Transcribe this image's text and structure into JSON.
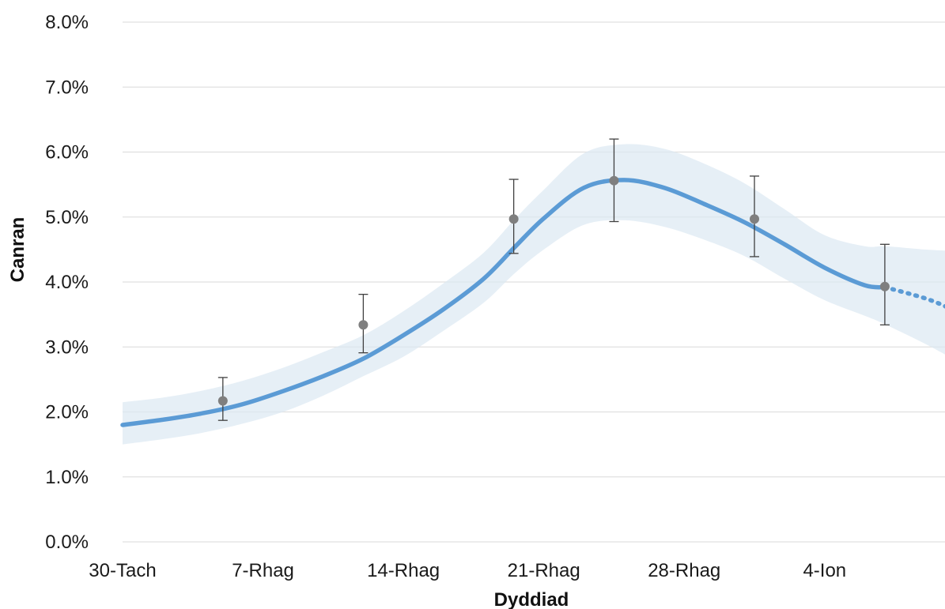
{
  "chart_data": {
    "type": "line",
    "title": "",
    "xlabel": "Dyddiad",
    "ylabel": "Canran",
    "x_tick_labels": [
      "30-Tach",
      "7-Rhag",
      "14-Rhag",
      "21-Rhag",
      "28-Rhag",
      "4-Ion"
    ],
    "x_tick_positions": [
      0,
      7,
      14,
      21,
      28,
      35
    ],
    "y_tick_labels": [
      "0.0%",
      "1.0%",
      "2.0%",
      "3.0%",
      "4.0%",
      "5.0%",
      "6.0%",
      "7.0%",
      "8.0%"
    ],
    "xlim": [
      0,
      41
    ],
    "ylim": [
      0,
      8
    ],
    "grid": "horizontal",
    "colors": {
      "line": "#5b9bd5",
      "band": "#dce8f2",
      "points": "#7f7f7f",
      "error_bars": "#404040",
      "grid": "#e0e0e0"
    },
    "modelled_series": {
      "x": [
        0,
        2,
        4,
        6,
        8,
        10,
        12,
        14,
        16,
        18,
        19.5,
        21,
        23,
        25,
        27,
        29,
        31,
        33,
        35,
        37,
        38
      ],
      "y": [
        1.8,
        1.88,
        1.98,
        2.12,
        2.32,
        2.55,
        2.82,
        3.18,
        3.58,
        4.05,
        4.52,
        4.98,
        5.45,
        5.57,
        5.45,
        5.2,
        4.92,
        4.58,
        4.22,
        3.95,
        3.92
      ],
      "lower": [
        1.5,
        1.58,
        1.68,
        1.82,
        2.0,
        2.25,
        2.55,
        2.85,
        3.25,
        3.68,
        4.12,
        4.5,
        4.88,
        4.95,
        4.85,
        4.65,
        4.4,
        4.05,
        3.72,
        3.48,
        3.35
      ],
      "upper": [
        2.15,
        2.22,
        2.33,
        2.48,
        2.68,
        2.92,
        3.18,
        3.55,
        3.98,
        4.45,
        4.95,
        5.42,
        5.98,
        6.12,
        6.05,
        5.82,
        5.52,
        5.12,
        4.72,
        4.55,
        4.55
      ]
    },
    "projection_series": {
      "x": [
        38,
        40,
        41.2
      ],
      "y": [
        3.92,
        3.75,
        3.6
      ],
      "lower": [
        3.35,
        3.05,
        2.85
      ],
      "upper": [
        4.55,
        4.5,
        4.48
      ],
      "style": "dotted"
    },
    "estimates": {
      "x": [
        5,
        12,
        19.5,
        24.5,
        31.5,
        38
      ],
      "y": [
        2.17,
        3.34,
        4.97,
        5.56,
        4.97,
        3.93
      ],
      "lower": [
        1.87,
        2.91,
        4.44,
        4.93,
        4.39,
        3.34
      ],
      "upper": [
        2.53,
        3.81,
        5.58,
        6.2,
        5.63,
        4.58
      ]
    }
  }
}
